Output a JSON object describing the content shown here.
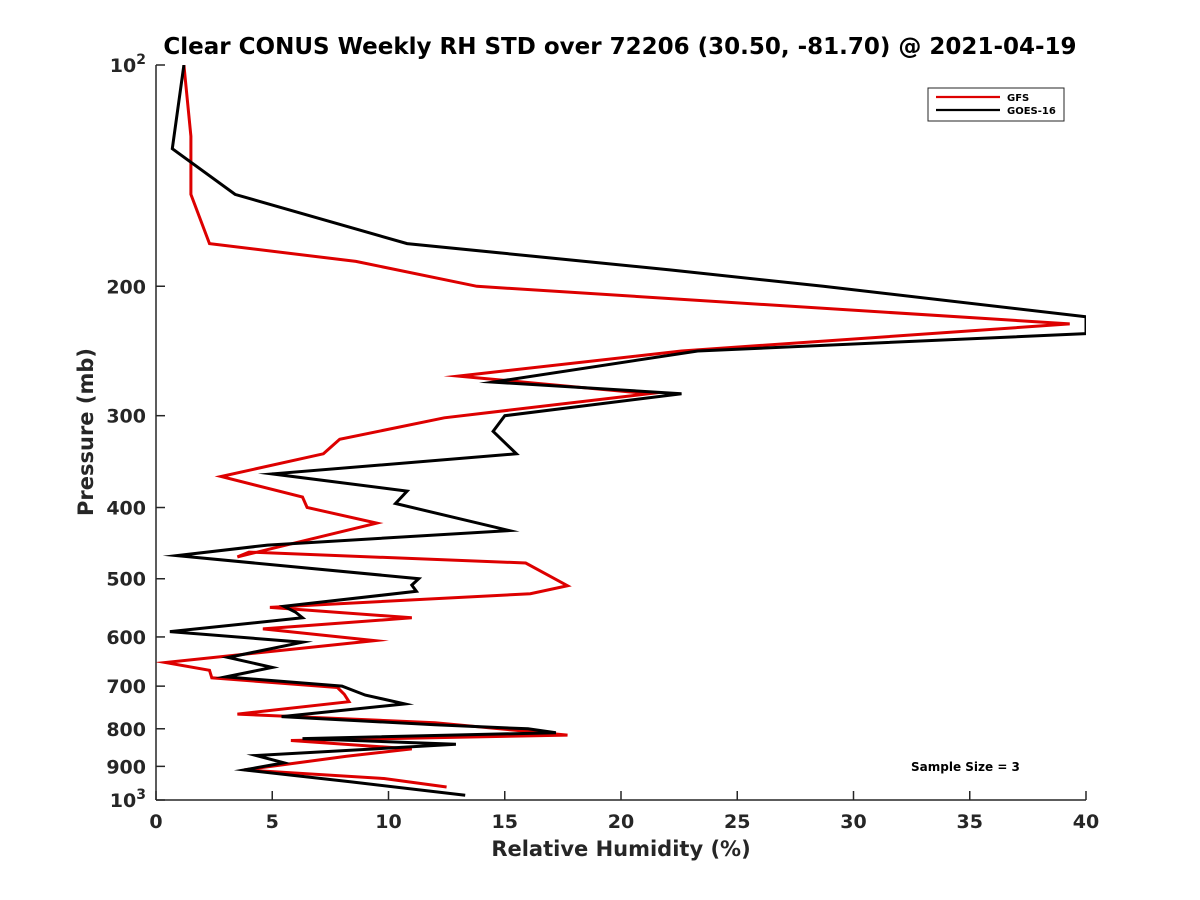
{
  "chart_data": {
    "type": "line",
    "title": "Clear CONUS Weekly RH STD over 72206 (30.50, -81.70) @ 2021-04-19",
    "xlabel": "Relative Humidity (%)",
    "ylabel": "Pressure (mb)",
    "xlim": [
      0,
      40
    ],
    "ylim": [
      100,
      1000
    ],
    "y_scale": "log",
    "y_reversed": true,
    "grid": false,
    "legend_position": "top-right",
    "x_ticks": [
      "0",
      "5",
      "10",
      "15",
      "20",
      "25",
      "30",
      "35",
      "40"
    ],
    "y_ticks": [
      {
        "value": 100,
        "base": "10",
        "exp": "2"
      },
      {
        "value": 200,
        "label": "200"
      },
      {
        "value": 300,
        "label": "300"
      },
      {
        "value": 400,
        "label": "400"
      },
      {
        "value": 500,
        "label": "500"
      },
      {
        "value": 600,
        "label": "600"
      },
      {
        "value": 700,
        "label": "700"
      },
      {
        "value": 800,
        "label": "800"
      },
      {
        "value": 900,
        "label": "900"
      },
      {
        "value": 1000,
        "base": "10",
        "exp": "3"
      }
    ],
    "annotation": "Sample Size = 3",
    "series": [
      {
        "name": "GFS",
        "color": "#dd0000",
        "points": [
          [
            1.2,
            100
          ],
          [
            1.5,
            125
          ],
          [
            1.5,
            150
          ],
          [
            2.3,
            175
          ],
          [
            8.6,
            185
          ],
          [
            13.8,
            200
          ],
          [
            39.3,
            225
          ],
          [
            22.6,
            245
          ],
          [
            13.0,
            265
          ],
          [
            21.2,
            280
          ],
          [
            12.4,
            302
          ],
          [
            7.9,
            323
          ],
          [
            7.2,
            338
          ],
          [
            2.8,
            363
          ],
          [
            6.3,
            387
          ],
          [
            6.5,
            400
          ],
          [
            9.5,
            420
          ],
          [
            3.5,
            467
          ],
          [
            4.0,
            460
          ],
          [
            15.9,
            476
          ],
          [
            17.7,
            511
          ],
          [
            16.1,
            524
          ],
          [
            4.9,
            547
          ],
          [
            11.0,
            565
          ],
          [
            4.6,
            585
          ],
          [
            9.4,
            607
          ],
          [
            0.4,
            650
          ],
          [
            2.3,
            666
          ],
          [
            2.4,
            682
          ],
          [
            7.8,
            703
          ],
          [
            8.1,
            718
          ],
          [
            8.3,
            735
          ],
          [
            3.5,
            764
          ],
          [
            12.0,
            785
          ],
          [
            15.7,
            805
          ],
          [
            17.7,
            816
          ],
          [
            5.8,
            830
          ],
          [
            11.0,
            852
          ],
          [
            8.2,
            872
          ],
          [
            3.8,
            910
          ],
          [
            9.8,
            935
          ],
          [
            12.5,
            960
          ]
        ]
      },
      {
        "name": "GOES-16",
        "color": "#000000",
        "points": [
          [
            1.2,
            100
          ],
          [
            0.7,
            130
          ],
          [
            3.4,
            150
          ],
          [
            10.8,
            175
          ],
          [
            22.1,
            190
          ],
          [
            28.7,
            200
          ],
          [
            40.0,
            220
          ],
          [
            40.0,
            232
          ],
          [
            23.3,
            245
          ],
          [
            14.5,
            270
          ],
          [
            22.6,
            280
          ],
          [
            15.0,
            300
          ],
          [
            14.5,
            315
          ],
          [
            15.5,
            338
          ],
          [
            5.0,
            360
          ],
          [
            10.8,
            380
          ],
          [
            10.3,
            395
          ],
          [
            15.2,
            430
          ],
          [
            4.8,
            450
          ],
          [
            0.9,
            465
          ],
          [
            11.3,
            500
          ],
          [
            11.0,
            510
          ],
          [
            11.2,
            520
          ],
          [
            5.5,
            545
          ],
          [
            6.0,
            555
          ],
          [
            6.3,
            565
          ],
          [
            0.6,
            590
          ],
          [
            6.3,
            610
          ],
          [
            3.1,
            640
          ],
          [
            5.0,
            660
          ],
          [
            3.0,
            680
          ],
          [
            8.0,
            700
          ],
          [
            9.0,
            720
          ],
          [
            10.7,
            740
          ],
          [
            5.4,
            770
          ],
          [
            12.0,
            790
          ],
          [
            16.0,
            800
          ],
          [
            17.2,
            810
          ],
          [
            6.3,
            825
          ],
          [
            12.9,
            840
          ],
          [
            4.3,
            870
          ],
          [
            5.5,
            890
          ],
          [
            3.8,
            910
          ],
          [
            8.4,
            945
          ],
          [
            13.3,
            985
          ]
        ]
      }
    ]
  }
}
